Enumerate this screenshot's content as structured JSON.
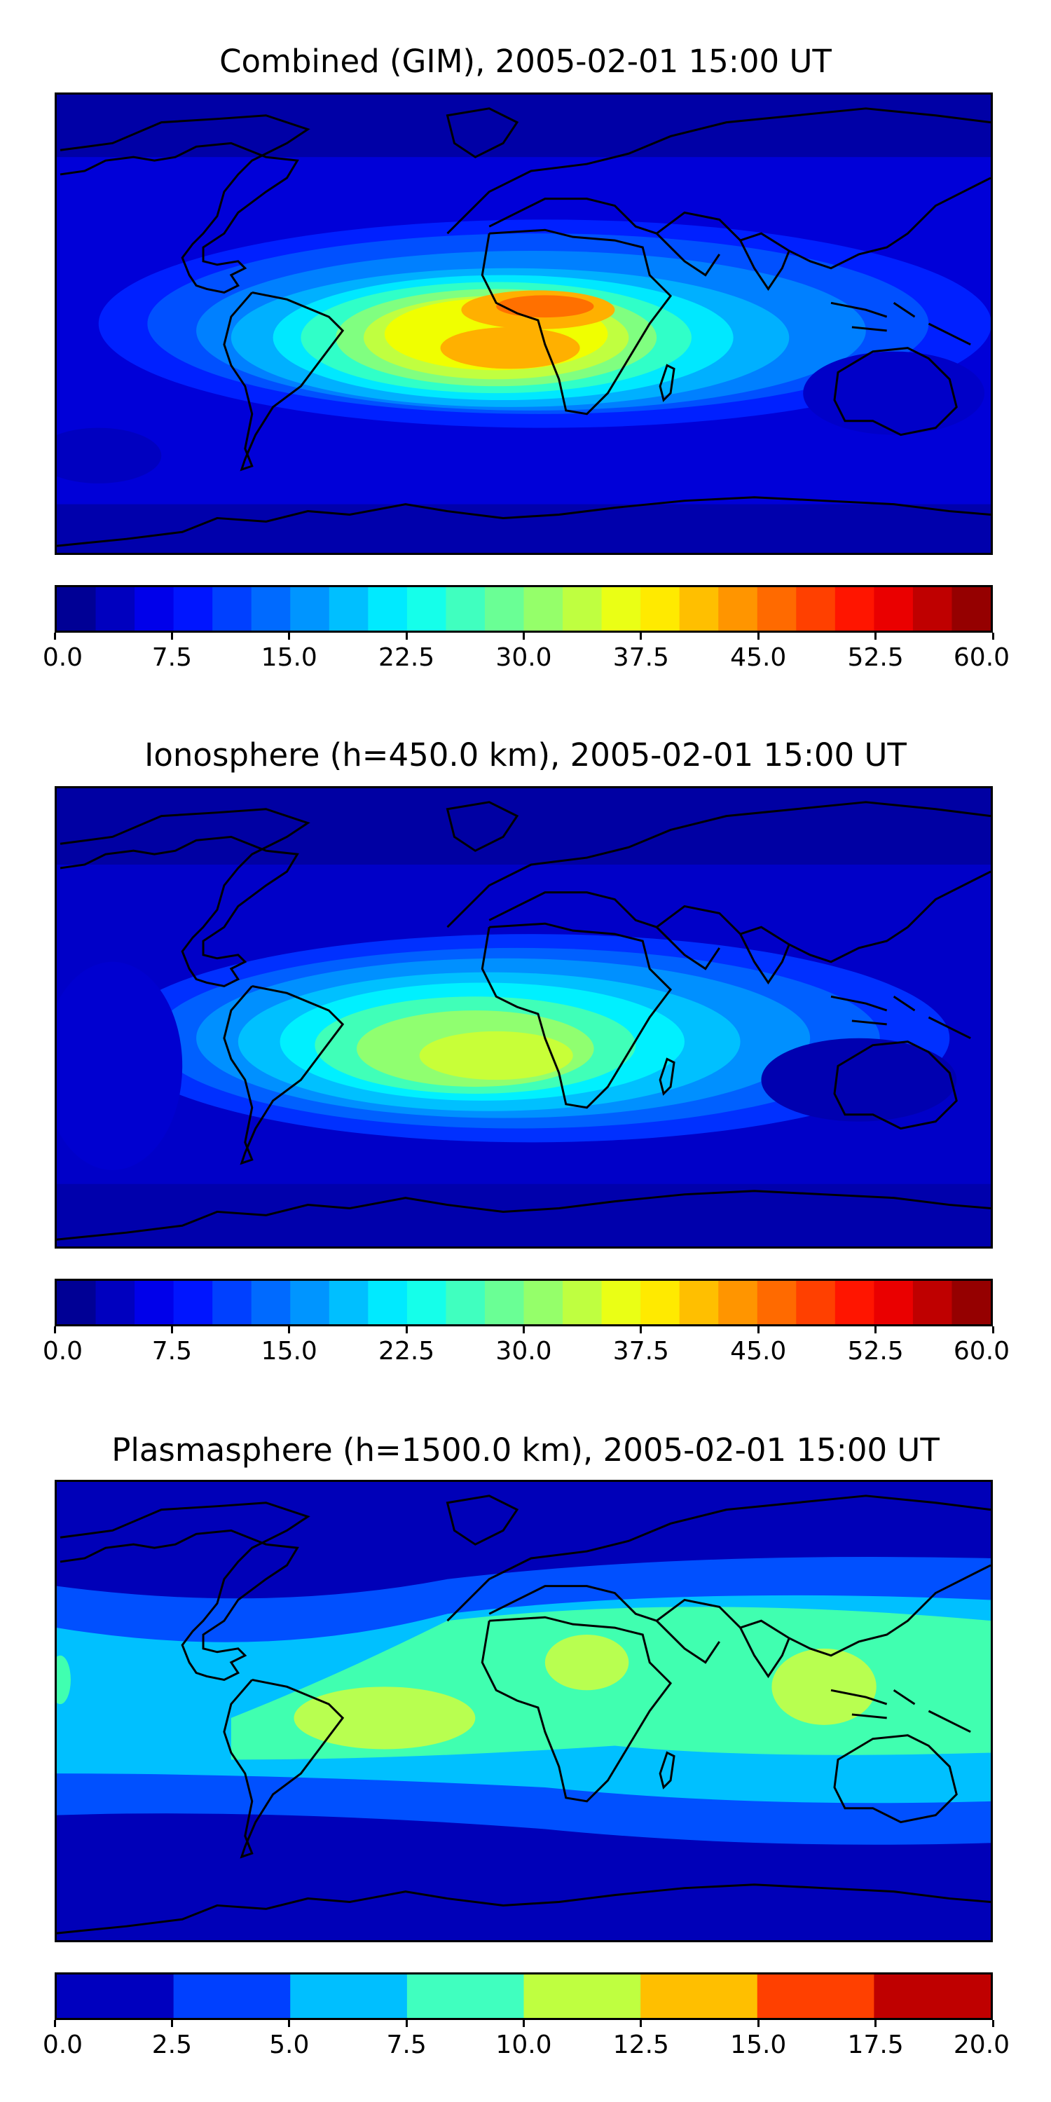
{
  "figure": {
    "panels": [
      {
        "id": "combined",
        "title": "Combined (GIM), 2005-02-01 15:00 UT",
        "colorbar": {
          "min": 0.0,
          "max": 60.0,
          "levels": 24,
          "tick_labels": [
            "0.0",
            "7.5",
            "15.0",
            "22.5",
            "30.0",
            "37.5",
            "45.0",
            "52.5",
            "60.0"
          ],
          "tick_values": [
            0,
            7.5,
            15,
            22.5,
            30,
            37.5,
            45,
            52.5,
            60
          ]
        }
      },
      {
        "id": "ionosphere",
        "title": "Ionosphere  (h=450.0 km), 2005-02-01 15:00 UT",
        "colorbar": {
          "min": 0.0,
          "max": 60.0,
          "levels": 24,
          "tick_labels": [
            "0.0",
            "7.5",
            "15.0",
            "22.5",
            "30.0",
            "37.5",
            "45.0",
            "52.5",
            "60.0"
          ],
          "tick_values": [
            0,
            7.5,
            15,
            22.5,
            30,
            37.5,
            45,
            52.5,
            60
          ]
        }
      },
      {
        "id": "plasmasphere",
        "title": "Plasmasphere (h=1500.0 km), 2005-02-01 15:00 UT",
        "colorbar": {
          "min": 0.0,
          "max": 20.0,
          "levels": 8,
          "tick_labels": [
            "0.0",
            "2.5",
            "5.0",
            "7.5",
            "10.0",
            "12.5",
            "15.0",
            "17.5",
            "20.0"
          ],
          "tick_values": [
            0,
            2.5,
            5,
            7.5,
            10,
            12.5,
            15,
            17.5,
            20
          ]
        }
      }
    ],
    "colormap": "jet",
    "coastline_color": "#000000"
  }
}
